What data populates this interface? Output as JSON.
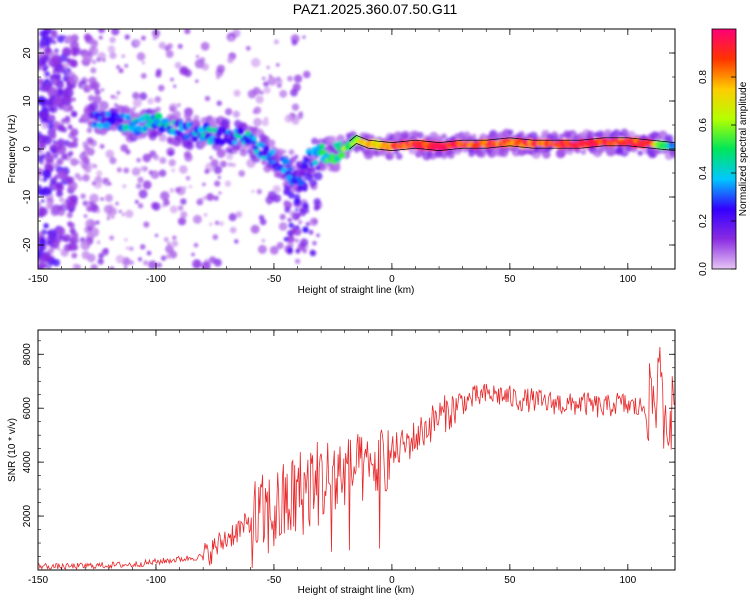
{
  "title": "PAZ1.2025.360.07.50.G11",
  "colors": {
    "snr_line": "#e8292b",
    "ridge": "#000000"
  },
  "chart_data": [
    {
      "type": "heatmap",
      "xlabel": "Height of straight line (km)",
      "ylabel": "Frequency (Hz)",
      "xlim": [
        -150,
        120
      ],
      "ylim": [
        -25,
        25
      ],
      "xticks": [
        "-150",
        "-100",
        "-50",
        "0",
        "50",
        "100"
      ],
      "yticks": [
        "-20",
        "-10",
        "0",
        "10",
        "20"
      ],
      "colorbar": {
        "label": "Normalized spectral amplitude",
        "range": [
          0,
          1
        ],
        "ticks": [
          "0.0",
          "0.2",
          "0.4",
          "0.6",
          "0.8"
        ],
        "colormap": [
          "#e7c6f4",
          "#8a2be2",
          "#3300ff",
          "#00c8ff",
          "#00e65a",
          "#b4ff00",
          "#ffcc00",
          "#ff3300",
          "#ff0077"
        ]
      },
      "ridge": {
        "x": [
          -127,
          -120,
          -110,
          -100,
          -90,
          -80,
          -70,
          -60,
          -55,
          -50,
          -45,
          -40,
          -35,
          -30,
          -25,
          -20,
          -15,
          -10,
          0,
          10,
          20,
          30,
          40,
          50,
          60,
          70,
          80,
          90,
          100,
          110,
          120
        ],
        "freq": [
          6,
          6,
          5,
          5.5,
          4,
          3.5,
          2.5,
          2,
          0,
          -2,
          -4,
          -7,
          -2,
          -1,
          -1,
          0,
          2,
          1,
          0.5,
          1,
          0.5,
          1,
          1,
          1.5,
          1,
          1,
          1,
          1.5,
          1.5,
          1,
          0.5
        ],
        "amplitude": [
          0.3,
          0.25,
          0.35,
          0.4,
          0.3,
          0.35,
          0.3,
          0.35,
          0.3,
          0.25,
          0.25,
          0.2,
          0.3,
          0.4,
          0.5,
          0.55,
          0.6,
          0.75,
          0.85,
          0.9,
          0.95,
          0.9,
          0.9,
          0.85,
          0.9,
          0.9,
          0.95,
          0.9,
          0.9,
          0.85,
          0.3
        ]
      }
    },
    {
      "type": "line",
      "xlabel": "Height of straight line (km)",
      "ylabel": "SNR (10 * v/v)",
      "xlim": [
        -150,
        120
      ],
      "ylim": [
        0,
        8900
      ],
      "xticks": [
        "-150",
        "-100",
        "-50",
        "0",
        "50",
        "100"
      ],
      "yticks": [
        "2000",
        "4000",
        "6000",
        "8000"
      ],
      "x": [
        -150,
        -140,
        -130,
        -120,
        -110,
        -100,
        -90,
        -80,
        -75,
        -70,
        -65,
        -60,
        -55,
        -50,
        -45,
        -40,
        -35,
        -30,
        -25,
        -20,
        -15,
        -10,
        -5,
        0,
        5,
        10,
        15,
        20,
        25,
        30,
        35,
        40,
        45,
        50,
        55,
        60,
        65,
        70,
        75,
        80,
        85,
        90,
        95,
        100,
        105,
        110,
        112,
        115,
        120
      ],
      "y": [
        150,
        120,
        150,
        180,
        200,
        300,
        400,
        500,
        800,
        1200,
        1500,
        1700,
        1900,
        2100,
        2400,
        2800,
        3100,
        3300,
        3400,
        3600,
        3800,
        3600,
        4000,
        4300,
        4600,
        4900,
        5300,
        5700,
        5900,
        6200,
        6400,
        6500,
        6500,
        6400,
        6300,
        6300,
        6200,
        6200,
        6100,
        6200,
        6100,
        6000,
        6200,
        6100,
        6000,
        6200,
        6600,
        6000,
        5800
      ]
    }
  ]
}
